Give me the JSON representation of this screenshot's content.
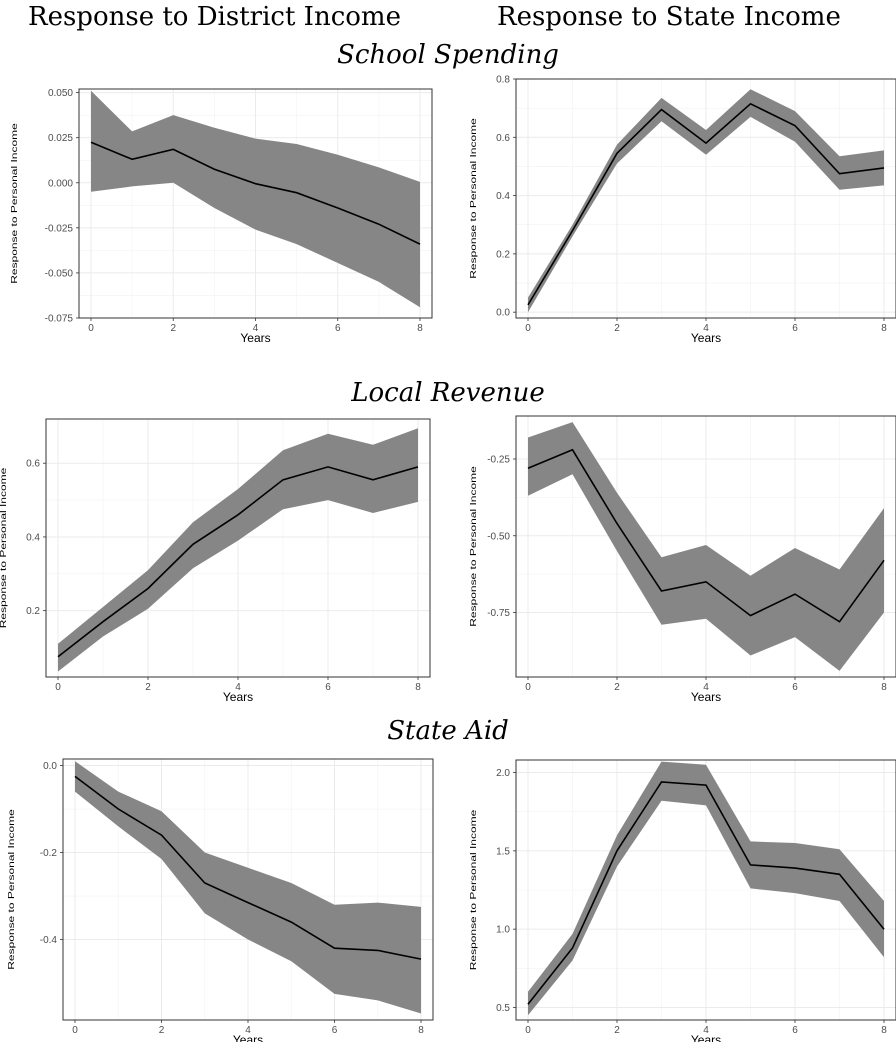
{
  "column_titles": [
    "Response to District Income",
    "Response to State Income"
  ],
  "row_titles": [
    "School Spending",
    "Local Revenue",
    "State Aid"
  ],
  "chart_data": [
    {
      "type": "line",
      "panel": "school-spending-district",
      "xlabel": "Years",
      "ylabel": "Response to Personal Income",
      "xlim": [
        0,
        8
      ],
      "ylim": [
        -0.075,
        0.052
      ],
      "xticks": [
        0,
        2,
        4,
        6,
        8
      ],
      "xtick_labels": [
        "0",
        "2",
        "4",
        "6",
        "8"
      ],
      "yticks": [
        -0.075,
        -0.05,
        -0.025,
        0.0,
        0.025,
        0.05
      ],
      "ytick_labels": [
        "-0.075",
        "-0.050",
        "-0.025",
        "0.000",
        "0.025",
        "0.050"
      ],
      "x": [
        0,
        1,
        2,
        3,
        4,
        5,
        6,
        7,
        8
      ],
      "series": [
        {
          "role": "estimate",
          "values": [
            0.0225,
            0.013,
            0.0185,
            0.0075,
            -0.0005,
            -0.0055,
            -0.014,
            -0.023,
            -0.034
          ]
        },
        {
          "role": "ci_upper",
          "values": [
            0.051,
            0.0285,
            0.0375,
            0.0305,
            0.0245,
            0.0215,
            0.0155,
            0.0085,
            0.0005
          ]
        },
        {
          "role": "ci_lower",
          "values": [
            -0.005,
            -0.002,
            0.0,
            -0.014,
            -0.026,
            -0.034,
            -0.0445,
            -0.055,
            -0.069
          ]
        }
      ],
      "grid": true
    },
    {
      "type": "line",
      "panel": "school-spending-state",
      "xlabel": "Years",
      "ylabel": "Response to Personal Income",
      "xlim": [
        0,
        8
      ],
      "ylim": [
        -0.02,
        0.8
      ],
      "xticks": [
        0,
        2,
        4,
        6,
        8
      ],
      "xtick_labels": [
        "0",
        "2",
        "4",
        "6",
        "8"
      ],
      "yticks": [
        0.0,
        0.2,
        0.4,
        0.6,
        0.8
      ],
      "ytick_labels": [
        "0.0",
        "0.2",
        "0.4",
        "0.6",
        "0.8"
      ],
      "x": [
        0,
        1,
        2,
        3,
        4,
        5,
        6,
        7,
        8
      ],
      "series": [
        {
          "role": "estimate",
          "values": [
            0.025,
            0.28,
            0.545,
            0.695,
            0.58,
            0.715,
            0.64,
            0.475,
            0.495
          ]
        },
        {
          "role": "ci_upper",
          "values": [
            0.05,
            0.3,
            0.575,
            0.735,
            0.625,
            0.765,
            0.69,
            0.535,
            0.555
          ]
        },
        {
          "role": "ci_lower",
          "values": [
            0.0,
            0.26,
            0.51,
            0.655,
            0.54,
            0.67,
            0.585,
            0.42,
            0.435
          ]
        }
      ],
      "grid": true
    },
    {
      "type": "line",
      "panel": "local-revenue-district",
      "xlabel": "Years",
      "ylabel": "Response to Personal Income",
      "xlim": [
        0,
        8
      ],
      "ylim": [
        0.02,
        0.72
      ],
      "xticks": [
        0,
        2,
        4,
        6,
        8
      ],
      "xtick_labels": [
        "0",
        "2",
        "4",
        "6",
        "8"
      ],
      "yticks": [
        0.2,
        0.4,
        0.6
      ],
      "ytick_labels": [
        "0.2",
        "0.4",
        "0.6"
      ],
      "x": [
        0,
        1,
        2,
        3,
        4,
        5,
        6,
        7,
        8
      ],
      "series": [
        {
          "role": "estimate",
          "values": [
            0.075,
            0.17,
            0.26,
            0.38,
            0.46,
            0.555,
            0.59,
            0.555,
            0.59
          ]
        },
        {
          "role": "ci_upper",
          "values": [
            0.11,
            0.21,
            0.31,
            0.44,
            0.53,
            0.635,
            0.68,
            0.65,
            0.695
          ]
        },
        {
          "role": "ci_lower",
          "values": [
            0.035,
            0.13,
            0.205,
            0.315,
            0.39,
            0.475,
            0.5,
            0.465,
            0.495
          ]
        }
      ],
      "grid": true
    },
    {
      "type": "line",
      "panel": "local-revenue-state",
      "xlabel": "Years",
      "ylabel": "Response to Personal Income",
      "xlim": [
        0,
        8
      ],
      "ylim": [
        -0.96,
        -0.11
      ],
      "xticks": [
        0,
        2,
        4,
        6,
        8
      ],
      "xtick_labels": [
        "0",
        "2",
        "4",
        "6",
        "8"
      ],
      "yticks": [
        -0.75,
        -0.5,
        -0.25
      ],
      "ytick_labels": [
        "-0.75",
        "-0.50",
        "-0.25"
      ],
      "x": [
        0,
        1,
        2,
        3,
        4,
        5,
        6,
        7,
        8
      ],
      "series": [
        {
          "role": "estimate",
          "values": [
            -0.28,
            -0.22,
            -0.46,
            -0.68,
            -0.65,
            -0.76,
            -0.69,
            -0.78,
            -0.58
          ]
        },
        {
          "role": "ci_upper",
          "values": [
            -0.18,
            -0.13,
            -0.36,
            -0.57,
            -0.53,
            -0.63,
            -0.54,
            -0.61,
            -0.41
          ]
        },
        {
          "role": "ci_lower",
          "values": [
            -0.37,
            -0.3,
            -0.55,
            -0.79,
            -0.77,
            -0.89,
            -0.83,
            -0.94,
            -0.75
          ]
        }
      ],
      "grid": true
    },
    {
      "type": "line",
      "panel": "state-aid-district",
      "xlabel": "Years",
      "ylabel": "Response to Personal Income",
      "xlim": [
        0,
        8
      ],
      "ylim": [
        -0.585,
        0.015
      ],
      "xticks": [
        0,
        2,
        4,
        6,
        8
      ],
      "xtick_labels": [
        "0",
        "2",
        "4",
        "6",
        "8"
      ],
      "yticks": [
        -0.4,
        -0.2,
        0.0
      ],
      "ytick_labels": [
        "-0.4",
        "-0.2",
        "0.0"
      ],
      "x": [
        0,
        1,
        2,
        3,
        4,
        5,
        6,
        7,
        8
      ],
      "series": [
        {
          "role": "estimate",
          "values": [
            -0.025,
            -0.1,
            -0.16,
            -0.27,
            -0.315,
            -0.36,
            -0.42,
            -0.425,
            -0.445
          ]
        },
        {
          "role": "ci_upper",
          "values": [
            0.01,
            -0.06,
            -0.105,
            -0.2,
            -0.235,
            -0.27,
            -0.32,
            -0.315,
            -0.325
          ]
        },
        {
          "role": "ci_lower",
          "values": [
            -0.06,
            -0.14,
            -0.215,
            -0.34,
            -0.4,
            -0.45,
            -0.525,
            -0.54,
            -0.57
          ]
        }
      ],
      "grid": true
    },
    {
      "type": "line",
      "panel": "state-aid-state",
      "xlabel": "Years",
      "ylabel": "Response to Personal Income",
      "xlim": [
        0,
        8
      ],
      "ylim": [
        0.42,
        2.08
      ],
      "xticks": [
        0,
        2,
        4,
        6,
        8
      ],
      "xtick_labels": [
        "0",
        "2",
        "4",
        "6",
        "8"
      ],
      "yticks": [
        0.5,
        1.0,
        1.5,
        2.0
      ],
      "ytick_labels": [
        "0.5",
        "1.0",
        "1.5",
        "2.0"
      ],
      "x": [
        0,
        1,
        2,
        3,
        4,
        5,
        6,
        7,
        8
      ],
      "series": [
        {
          "role": "estimate",
          "values": [
            0.52,
            0.88,
            1.5,
            1.94,
            1.92,
            1.41,
            1.39,
            1.35,
            1.0
          ]
        },
        {
          "role": "ci_upper",
          "values": [
            0.6,
            0.97,
            1.6,
            2.07,
            2.05,
            1.56,
            1.55,
            1.51,
            1.18
          ]
        },
        {
          "role": "ci_lower",
          "values": [
            0.45,
            0.8,
            1.4,
            1.82,
            1.79,
            1.26,
            1.23,
            1.18,
            0.82
          ]
        }
      ],
      "grid": true
    }
  ]
}
